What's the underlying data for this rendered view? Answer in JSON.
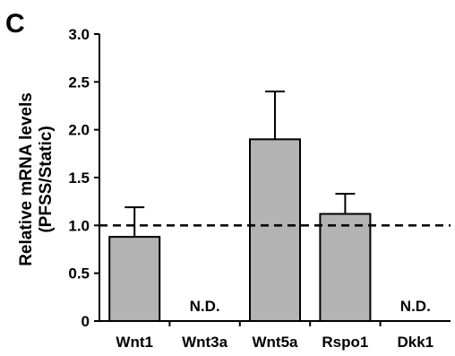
{
  "panel_label": "C",
  "chart_data": {
    "type": "bar",
    "ylabel_line1": "Relative mRNA levels",
    "ylabel_line2": "(PFSS/Static)",
    "ylim": [
      0,
      3.0
    ],
    "yticks": [
      "0",
      "0.5",
      "1.0",
      "1.5",
      "2.0",
      "2.5",
      "3.0"
    ],
    "ytick_values": [
      0,
      0.5,
      1.0,
      1.5,
      2.0,
      2.5,
      3.0
    ],
    "categories": [
      "Wnt1",
      "Wnt3a",
      "Wnt5a",
      "Rspo1",
      "Dkk1"
    ],
    "values": [
      0.88,
      null,
      1.9,
      1.12,
      null
    ],
    "error_upper": [
      1.19,
      null,
      2.4,
      1.33,
      null
    ],
    "nd_label": "N.D.",
    "reference_line": 1.0,
    "bar_color": "#b3b3b3",
    "grid": false
  }
}
